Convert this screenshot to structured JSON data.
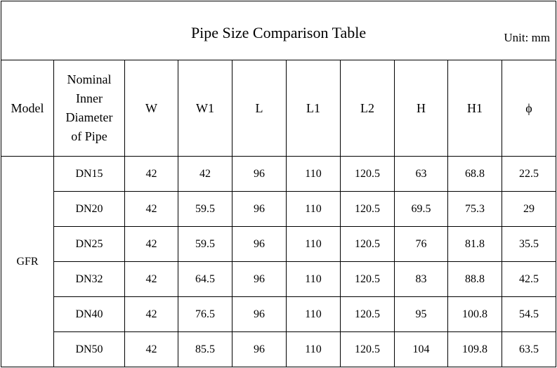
{
  "header": {
    "title": "Pipe Size Comparison Table",
    "unit": "Unit: mm"
  },
  "table": {
    "columns": [
      "Model",
      "Nominal Inner Diameter of Pipe",
      "W",
      "W1",
      "L",
      "L1",
      "L2",
      "H",
      "H1",
      "ϕ"
    ],
    "model": "GFR",
    "rows": [
      [
        "DN15",
        42,
        42,
        96,
        110,
        120.5,
        63,
        68.8,
        22.5
      ],
      [
        "DN20",
        42,
        59.5,
        96,
        110,
        120.5,
        69.5,
        75.3,
        29
      ],
      [
        "DN25",
        42,
        59.5,
        96,
        110,
        120.5,
        76,
        81.8,
        35.5
      ],
      [
        "DN32",
        42,
        64.5,
        96,
        110,
        120.5,
        83,
        88.8,
        42.5
      ],
      [
        "DN40",
        42,
        76.5,
        96,
        110,
        120.5,
        95,
        100.8,
        54.5
      ],
      [
        "DN50",
        42,
        85.5,
        96,
        110,
        120.5,
        104,
        109.8,
        63.5
      ]
    ]
  }
}
